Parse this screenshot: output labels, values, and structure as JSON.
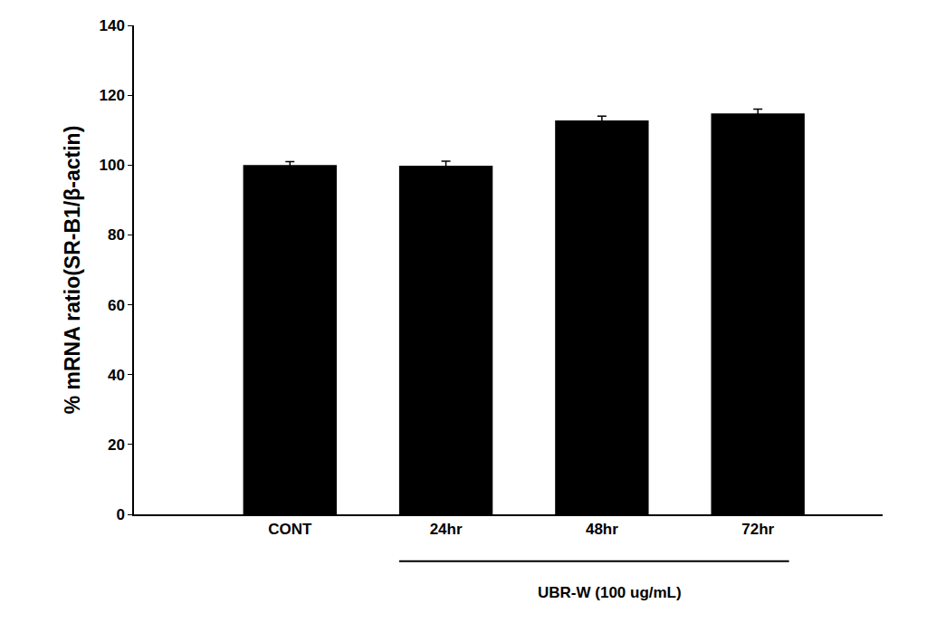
{
  "chart_data": {
    "type": "bar",
    "categories": [
      "CONT",
      "24hr",
      "48hr",
      "72hr"
    ],
    "values": [
      100,
      99.8,
      112.8,
      114.8
    ],
    "error": [
      1.0,
      1.3,
      1.2,
      1.2
    ],
    "color": "#000000",
    "y_label": "% mRNA ratio(SR-B1/β-actin)",
    "ylim": [
      0,
      140
    ],
    "yticks": [
      0,
      20,
      40,
      60,
      80,
      100,
      120,
      140
    ],
    "grid": false,
    "annotations": [
      {
        "text": "UBR-W (100 ug/mL)",
        "categories": [
          "24hr",
          "72hr"
        ]
      }
    ]
  }
}
